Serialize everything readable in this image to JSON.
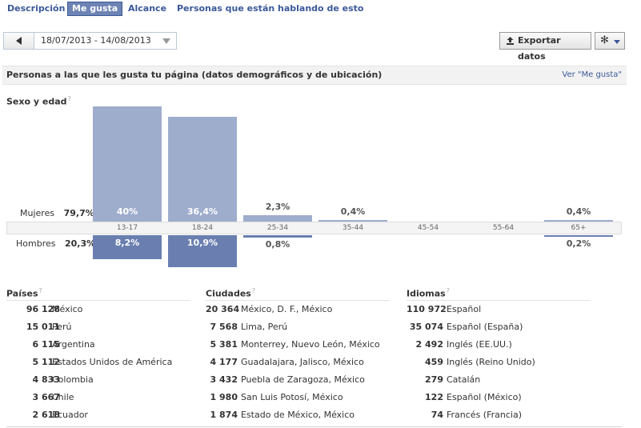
{
  "tabs": [
    {
      "label": "Descripción",
      "active": false
    },
    {
      "label": "Me gusta",
      "active": true
    },
    {
      "label": "Alcance",
      "active": false
    },
    {
      "label": "Personas que están hablando de esto",
      "active": false
    }
  ],
  "toolbar": {
    "date_range": "18/07/2013 - 14/08/2013",
    "export_label": "Exportar datos",
    "icons": {
      "prev": "triangle-left-icon",
      "date_dropdown": "chevron-down-icon",
      "export": "upload-icon",
      "settings": "gear-icon"
    }
  },
  "section": {
    "title": "Personas a las que les gusta tu página (datos demográficos y de ubicación)",
    "link": "Ver \"Me gusta\""
  },
  "demographics": {
    "title": "Sexo y edad",
    "help": "?",
    "women_label": "Mujeres",
    "women_total": "79,7%",
    "men_label": "Hombres",
    "men_total": "20,3%",
    "colors": {
      "women": "#9fadcd",
      "men": "#6a7fb0"
    }
  },
  "chart_data": {
    "type": "bar",
    "categories": [
      "13-17",
      "18-24",
      "25-34",
      "35-44",
      "45-54",
      "55-64",
      "65+"
    ],
    "series": [
      {
        "name": "Mujeres",
        "values": [
          40,
          36.4,
          2.3,
          0.4,
          0,
          0,
          0.4
        ],
        "labels": [
          "40%",
          "36,4%",
          "2,3%",
          "0,4%",
          "",
          "",
          "0,4%"
        ]
      },
      {
        "name": "Hombres",
        "values": [
          8.2,
          10.9,
          0.8,
          0,
          0,
          0,
          0.2
        ],
        "labels": [
          "8,2%",
          "10,9%",
          "0,8%",
          "",
          "",
          "",
          "0,2%"
        ]
      }
    ],
    "ylabel": "",
    "xlabel": ""
  },
  "countries": {
    "title": "Países",
    "items": [
      {
        "count": "96 128",
        "name": "México"
      },
      {
        "count": "15 011",
        "name": "Perú"
      },
      {
        "count": "6 115",
        "name": "Argentina"
      },
      {
        "count": "5 112",
        "name": "Estados Unidos de América"
      },
      {
        "count": "4 833",
        "name": "Colombia"
      },
      {
        "count": "3 667",
        "name": "Chile"
      },
      {
        "count": "2 618",
        "name": "Ecuador"
      }
    ]
  },
  "cities": {
    "title": "Ciudades",
    "items": [
      {
        "count": "20 364",
        "name": "México, D. F., México"
      },
      {
        "count": "7 568",
        "name": "Lima, Perú"
      },
      {
        "count": "5 381",
        "name": "Monterrey, Nuevo León, México"
      },
      {
        "count": "4 177",
        "name": "Guadalajara, Jalisco, México"
      },
      {
        "count": "3 432",
        "name": "Puebla de Zaragoza, México"
      },
      {
        "count": "1 980",
        "name": "San Luis Potosí, México"
      },
      {
        "count": "1 874",
        "name": "Estado de México, México"
      }
    ]
  },
  "languages": {
    "title": "Idiomas",
    "items": [
      {
        "count": "110 972",
        "name": "Español"
      },
      {
        "count": "35 074",
        "name": "Español (España)"
      },
      {
        "count": "2 492",
        "name": "Inglés (EE.UU.)"
      },
      {
        "count": "459",
        "name": "Inglés (Reino Unido)"
      },
      {
        "count": "279",
        "name": "Catalán"
      },
      {
        "count": "122",
        "name": "Español (México)"
      },
      {
        "count": "74",
        "name": "Francés (Francia)"
      }
    ]
  }
}
